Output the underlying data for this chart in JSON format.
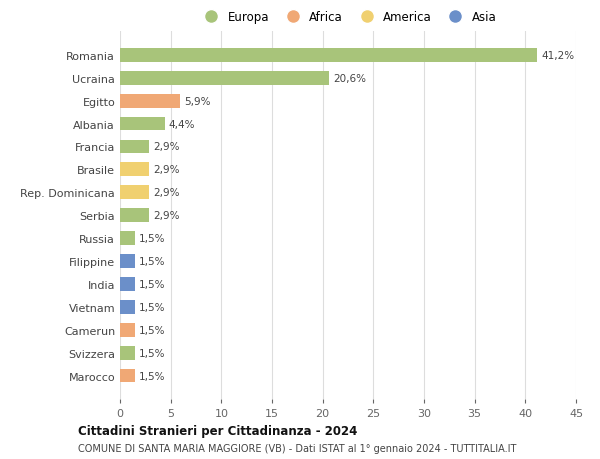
{
  "countries": [
    "Romania",
    "Ucraina",
    "Egitto",
    "Albania",
    "Francia",
    "Brasile",
    "Rep. Dominicana",
    "Serbia",
    "Russia",
    "Filippine",
    "India",
    "Vietnam",
    "Camerun",
    "Svizzera",
    "Marocco"
  ],
  "values": [
    41.2,
    20.6,
    5.9,
    4.4,
    2.9,
    2.9,
    2.9,
    2.9,
    1.5,
    1.5,
    1.5,
    1.5,
    1.5,
    1.5,
    1.5
  ],
  "labels": [
    "41,2%",
    "20,6%",
    "5,9%",
    "4,4%",
    "2,9%",
    "2,9%",
    "2,9%",
    "2,9%",
    "1,5%",
    "1,5%",
    "1,5%",
    "1,5%",
    "1,5%",
    "1,5%",
    "1,5%"
  ],
  "colors": [
    "#a8c47a",
    "#a8c47a",
    "#f0a875",
    "#a8c47a",
    "#a8c47a",
    "#f0d070",
    "#f0d070",
    "#a8c47a",
    "#a8c47a",
    "#6b8fc9",
    "#6b8fc9",
    "#6b8fc9",
    "#f0a875",
    "#a8c47a",
    "#f0a875"
  ],
  "legend_labels": [
    "Europa",
    "Africa",
    "America",
    "Asia"
  ],
  "legend_colors": [
    "#a8c47a",
    "#f0a875",
    "#f0d070",
    "#6b8fc9"
  ],
  "xlim": [
    0,
    45
  ],
  "xticks": [
    0,
    5,
    10,
    15,
    20,
    25,
    30,
    35,
    40,
    45
  ],
  "title": "Cittadini Stranieri per Cittadinanza - 2024",
  "subtitle": "COMUNE DI SANTA MARIA MAGGIORE (VB) - Dati ISTAT al 1° gennaio 2024 - TUTTITALIA.IT",
  "bg_color": "#ffffff",
  "grid_color": "#dddddd",
  "bar_height": 0.6
}
